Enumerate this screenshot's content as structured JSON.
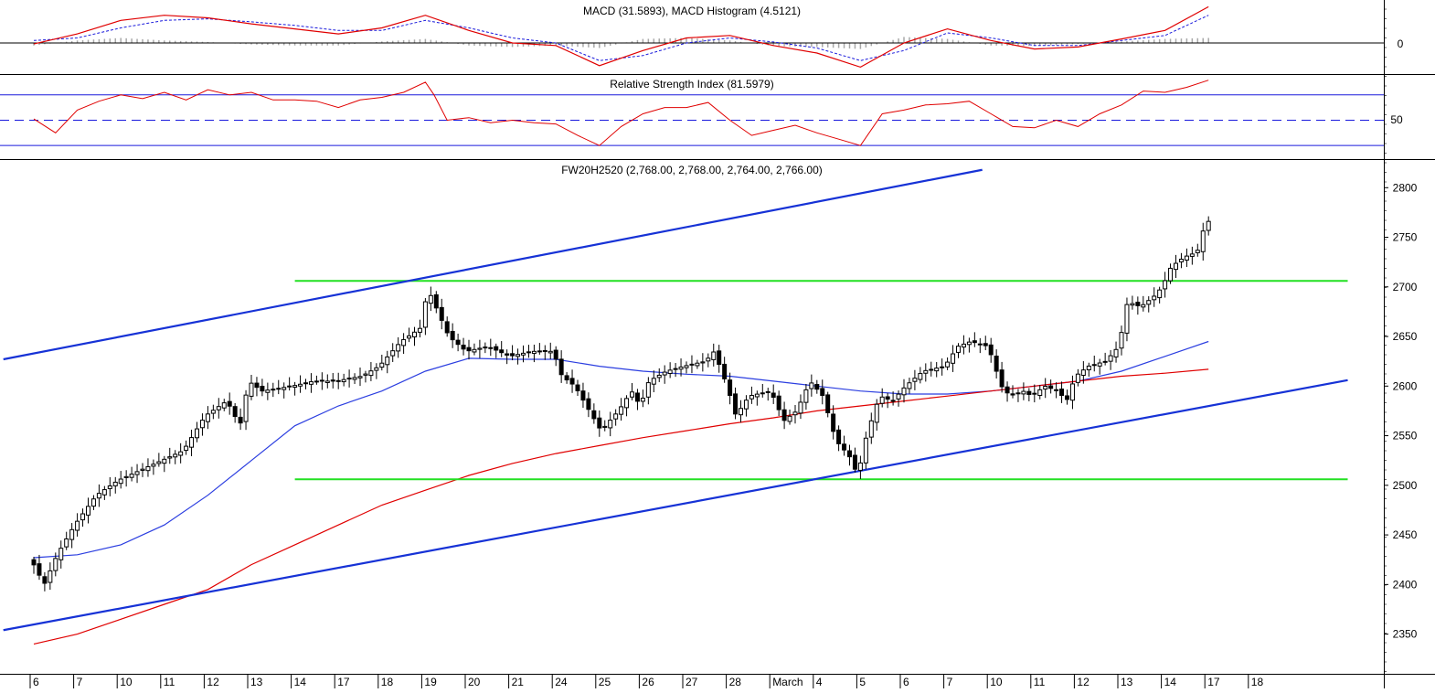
{
  "macd_panel": {
    "title": "MACD (31.5893), MACD Histogram (4.5121)",
    "zero_label": "0",
    "colors": {
      "macd": "#e00000",
      "signal": "#1a1adc",
      "histogram": "#a8a8a8",
      "zero": "#000000"
    }
  },
  "rsi_panel": {
    "title": "Relative Strength Index (81.5979)",
    "mid_label": "50",
    "levels": [
      30,
      50,
      70
    ],
    "colors": {
      "rsi": "#e00000",
      "levels": "#1a1adc"
    }
  },
  "price_panel": {
    "title": "FW20H2520 (2,768.00, 2,768.00, 2,764.00, 2,766.00)",
    "colors": {
      "candle": "#000000",
      "ma_fast": "#2b3ee0",
      "ma_slow": "#e00000",
      "trendline": "#1632d6",
      "support_resistance": "#22e022"
    }
  },
  "x_axis": {
    "labels": [
      "6",
      "7",
      "10",
      "11",
      "12",
      "13",
      "14",
      "17",
      "18",
      "19",
      "20",
      "21",
      "24",
      "25",
      "26",
      "27",
      "28",
      "March",
      "4",
      "5",
      "6",
      "7",
      "10",
      "11",
      "12",
      "13",
      "14",
      "17",
      "18"
    ]
  },
  "chart_data": {
    "type": "candlestick",
    "title": "FW20H2520 (2,768.00, 2,768.00, 2,764.00, 2,766.00)",
    "y_axis": {
      "range": [
        2310,
        2815
      ],
      "ticks": [
        2350,
        2400,
        2450,
        2500,
        2550,
        2600,
        2650,
        2700,
        2750,
        2800
      ]
    },
    "x_axis": {
      "type": "trading days",
      "categories": [
        "6",
        "7",
        "10",
        "11",
        "12",
        "13",
        "14",
        "17",
        "18",
        "19",
        "20",
        "21",
        "24",
        "25",
        "26",
        "27",
        "28",
        "March",
        "4",
        "5",
        "6",
        "7",
        "10",
        "11",
        "12",
        "13",
        "14",
        "17",
        "18"
      ]
    },
    "price_path": [
      [
        0,
        2425
      ],
      [
        0.3,
        2400
      ],
      [
        0.6,
        2430
      ],
      [
        1.0,
        2460
      ],
      [
        1.5,
        2490
      ],
      [
        2.0,
        2505
      ],
      [
        2.5,
        2515
      ],
      [
        3.0,
        2525
      ],
      [
        3.5,
        2535
      ],
      [
        4.0,
        2570
      ],
      [
        4.5,
        2585
      ],
      [
        4.8,
        2560
      ],
      [
        5.0,
        2605
      ],
      [
        5.3,
        2595
      ],
      [
        6.0,
        2600
      ],
      [
        6.5,
        2605
      ],
      [
        7.0,
        2605
      ],
      [
        7.6,
        2610
      ],
      [
        8.0,
        2620
      ],
      [
        8.5,
        2645
      ],
      [
        9.0,
        2660
      ],
      [
        9.1,
        2700
      ],
      [
        9.3,
        2680
      ],
      [
        9.6,
        2650
      ],
      [
        10.0,
        2635
      ],
      [
        10.5,
        2640
      ],
      [
        11.0,
        2630
      ],
      [
        11.5,
        2635
      ],
      [
        12.0,
        2635
      ],
      [
        12.2,
        2610
      ],
      [
        12.5,
        2600
      ],
      [
        12.9,
        2570
      ],
      [
        13.1,
        2555
      ],
      [
        13.5,
        2575
      ],
      [
        13.8,
        2595
      ],
      [
        14.0,
        2580
      ],
      [
        14.2,
        2605
      ],
      [
        14.6,
        2615
      ],
      [
        15.0,
        2620
      ],
      [
        15.5,
        2625
      ],
      [
        15.7,
        2635
      ],
      [
        16.0,
        2600
      ],
      [
        16.2,
        2570
      ],
      [
        16.5,
        2590
      ],
      [
        17.0,
        2595
      ],
      [
        17.3,
        2565
      ],
      [
        17.6,
        2575
      ],
      [
        17.9,
        2605
      ],
      [
        18.2,
        2590
      ],
      [
        18.5,
        2545
      ],
      [
        18.8,
        2530
      ],
      [
        19.0,
        2510
      ],
      [
        19.2,
        2550
      ],
      [
        19.5,
        2590
      ],
      [
        19.8,
        2585
      ],
      [
        20.1,
        2600
      ],
      [
        20.5,
        2615
      ],
      [
        21.0,
        2620
      ],
      [
        21.3,
        2640
      ],
      [
        21.6,
        2645
      ],
      [
        22.0,
        2640
      ],
      [
        22.3,
        2600
      ],
      [
        22.5,
        2590
      ],
      [
        22.8,
        2595
      ],
      [
        23.0,
        2590
      ],
      [
        23.3,
        2600
      ],
      [
        23.6,
        2595
      ],
      [
        23.8,
        2585
      ],
      [
        24.0,
        2610
      ],
      [
        24.3,
        2620
      ],
      [
        24.7,
        2625
      ],
      [
        25.0,
        2640
      ],
      [
        25.2,
        2685
      ],
      [
        25.5,
        2680
      ],
      [
        25.8,
        2690
      ],
      [
        26.0,
        2700
      ],
      [
        26.2,
        2720
      ],
      [
        26.5,
        2730
      ],
      [
        26.8,
        2735
      ],
      [
        27.0,
        2766
      ]
    ],
    "series": [
      {
        "name": "",
        "kind": "moving-average",
        "points": [
          [
            0,
            2427
          ],
          [
            1,
            2430
          ],
          [
            2,
            2440
          ],
          [
            3,
            2460
          ],
          [
            4,
            2490
          ],
          [
            5,
            2525
          ],
          [
            6,
            2560
          ],
          [
            7,
            2580
          ],
          [
            8,
            2595
          ],
          [
            9,
            2615
          ],
          [
            10,
            2628
          ],
          [
            11,
            2627
          ],
          [
            12,
            2627
          ],
          [
            13,
            2620
          ],
          [
            14,
            2615
          ],
          [
            15,
            2612
          ],
          [
            16,
            2610
          ],
          [
            17,
            2605
          ],
          [
            18,
            2600
          ],
          [
            19,
            2595
          ],
          [
            20,
            2592
          ],
          [
            21,
            2592
          ],
          [
            22,
            2595
          ],
          [
            23,
            2600
          ],
          [
            24,
            2605
          ],
          [
            25,
            2615
          ],
          [
            26,
            2630
          ],
          [
            27,
            2645
          ]
        ]
      },
      {
        "name": "",
        "kind": "moving-average",
        "points": [
          [
            0,
            2340
          ],
          [
            1,
            2350
          ],
          [
            2,
            2365
          ],
          [
            3,
            2380
          ],
          [
            4,
            2395
          ],
          [
            5,
            2420
          ],
          [
            6,
            2440
          ],
          [
            7,
            2460
          ],
          [
            8,
            2480
          ],
          [
            9,
            2495
          ],
          [
            10,
            2510
          ],
          [
            11,
            2522
          ],
          [
            12,
            2532
          ],
          [
            13,
            2540
          ],
          [
            14,
            2548
          ],
          [
            15,
            2555
          ],
          [
            16,
            2562
          ],
          [
            17,
            2568
          ],
          [
            18,
            2575
          ],
          [
            19,
            2580
          ],
          [
            20,
            2585
          ],
          [
            21,
            2590
          ],
          [
            22,
            2595
          ],
          [
            23,
            2600
          ],
          [
            24,
            2605
          ],
          [
            25,
            2610
          ],
          [
            26,
            2613
          ],
          [
            27,
            2617
          ]
        ]
      }
    ],
    "trendlines": [
      {
        "from": [
          -0.7,
          2627
        ],
        "to": [
          21.8,
          2818
        ]
      },
      {
        "from": [
          -0.7,
          2354
        ],
        "to": [
          30.2,
          2606
        ]
      }
    ],
    "horizontal_levels": [
      {
        "value": 2706,
        "from_x": 6.0,
        "to_x": 30.2
      },
      {
        "value": 2506,
        "from_x": 6.0,
        "to_x": 30.2
      }
    ],
    "macd": {
      "zero_line": 0,
      "line": [
        [
          0,
          -0.02
        ],
        [
          1,
          0.18
        ],
        [
          2,
          0.45
        ],
        [
          3,
          0.55
        ],
        [
          4,
          0.5
        ],
        [
          5,
          0.38
        ],
        [
          6,
          0.28
        ],
        [
          7,
          0.18
        ],
        [
          8,
          0.3
        ],
        [
          9,
          0.55
        ],
        [
          10,
          0.25
        ],
        [
          11,
          0.0
        ],
        [
          12,
          -0.05
        ],
        [
          13,
          -0.45
        ],
        [
          14,
          -0.15
        ],
        [
          15,
          0.1
        ],
        [
          16,
          0.15
        ],
        [
          17,
          -0.05
        ],
        [
          18,
          -0.2
        ],
        [
          19,
          -0.48
        ],
        [
          20,
          0.0
        ],
        [
          21,
          0.28
        ],
        [
          22,
          0.05
        ],
        [
          23,
          -0.12
        ],
        [
          24,
          -0.08
        ],
        [
          25,
          0.08
        ],
        [
          26,
          0.25
        ],
        [
          27,
          0.72
        ]
      ],
      "signal": [
        [
          0,
          0.05
        ],
        [
          1,
          0.1
        ],
        [
          2,
          0.3
        ],
        [
          3,
          0.45
        ],
        [
          4,
          0.48
        ],
        [
          5,
          0.42
        ],
        [
          6,
          0.35
        ],
        [
          7,
          0.25
        ],
        [
          8,
          0.25
        ],
        [
          9,
          0.45
        ],
        [
          10,
          0.3
        ],
        [
          11,
          0.1
        ],
        [
          12,
          0.0
        ],
        [
          13,
          -0.35
        ],
        [
          14,
          -0.25
        ],
        [
          15,
          0.0
        ],
        [
          16,
          0.1
        ],
        [
          17,
          0.02
        ],
        [
          18,
          -0.1
        ],
        [
          19,
          -0.35
        ],
        [
          20,
          -0.15
        ],
        [
          21,
          0.2
        ],
        [
          22,
          0.1
        ],
        [
          23,
          -0.05
        ],
        [
          24,
          -0.05
        ],
        [
          25,
          0.05
        ],
        [
          26,
          0.15
        ],
        [
          27,
          0.55
        ]
      ],
      "histogram": [
        [
          0,
          -0.05
        ],
        [
          1,
          0.05
        ],
        [
          2,
          0.1
        ],
        [
          3,
          0.05
        ],
        [
          4,
          0.02
        ],
        [
          5,
          -0.03
        ],
        [
          6,
          -0.05
        ],
        [
          7,
          -0.05
        ],
        [
          8,
          0.03
        ],
        [
          9,
          0.08
        ],
        [
          10,
          -0.05
        ],
        [
          11,
          -0.08
        ],
        [
          12,
          -0.05
        ],
        [
          13,
          -0.1
        ],
        [
          14,
          0.08
        ],
        [
          15,
          0.1
        ],
        [
          16,
          0.05
        ],
        [
          17,
          -0.06
        ],
        [
          18,
          -0.08
        ],
        [
          19,
          -0.12
        ],
        [
          20,
          0.12
        ],
        [
          21,
          0.08
        ],
        [
          22,
          -0.05
        ],
        [
          23,
          -0.06
        ],
        [
          24,
          -0.02
        ],
        [
          25,
          0.03
        ],
        [
          26,
          0.08
        ],
        [
          27,
          0.1
        ]
      ]
    },
    "rsi": {
      "levels": [
        30,
        50,
        70
      ],
      "range": [
        20,
        85
      ],
      "points": [
        [
          0,
          51
        ],
        [
          0.5,
          40
        ],
        [
          1,
          58
        ],
        [
          1.5,
          65
        ],
        [
          2,
          70
        ],
        [
          2.5,
          67
        ],
        [
          3,
          72
        ],
        [
          3.5,
          66
        ],
        [
          4,
          74
        ],
        [
          4.5,
          70
        ],
        [
          5,
          72
        ],
        [
          5.5,
          66
        ],
        [
          6,
          66
        ],
        [
          6.5,
          65
        ],
        [
          7,
          60
        ],
        [
          7.5,
          66
        ],
        [
          8,
          68
        ],
        [
          8.5,
          72
        ],
        [
          9,
          80
        ],
        [
          9.2,
          70
        ],
        [
          9.5,
          50
        ],
        [
          10,
          52
        ],
        [
          10.5,
          48
        ],
        [
          11,
          50
        ],
        [
          11.5,
          48
        ],
        [
          12,
          47
        ],
        [
          12.5,
          38
        ],
        [
          13,
          30
        ],
        [
          13.5,
          45
        ],
        [
          14,
          55
        ],
        [
          14.5,
          60
        ],
        [
          15,
          60
        ],
        [
          15.5,
          64
        ],
        [
          16,
          50
        ],
        [
          16.5,
          38
        ],
        [
          17,
          42
        ],
        [
          17.5,
          46
        ],
        [
          18,
          40
        ],
        [
          18.5,
          35
        ],
        [
          19,
          30
        ],
        [
          19.5,
          55
        ],
        [
          20,
          58
        ],
        [
          20.5,
          62
        ],
        [
          21,
          63
        ],
        [
          21.5,
          65
        ],
        [
          22,
          55
        ],
        [
          22.5,
          45
        ],
        [
          23,
          44
        ],
        [
          23.5,
          50
        ],
        [
          24,
          45
        ],
        [
          24.5,
          55
        ],
        [
          25,
          62
        ],
        [
          25.5,
          73
        ],
        [
          26,
          72
        ],
        [
          26.5,
          76
        ],
        [
          27,
          81.6
        ]
      ]
    }
  }
}
